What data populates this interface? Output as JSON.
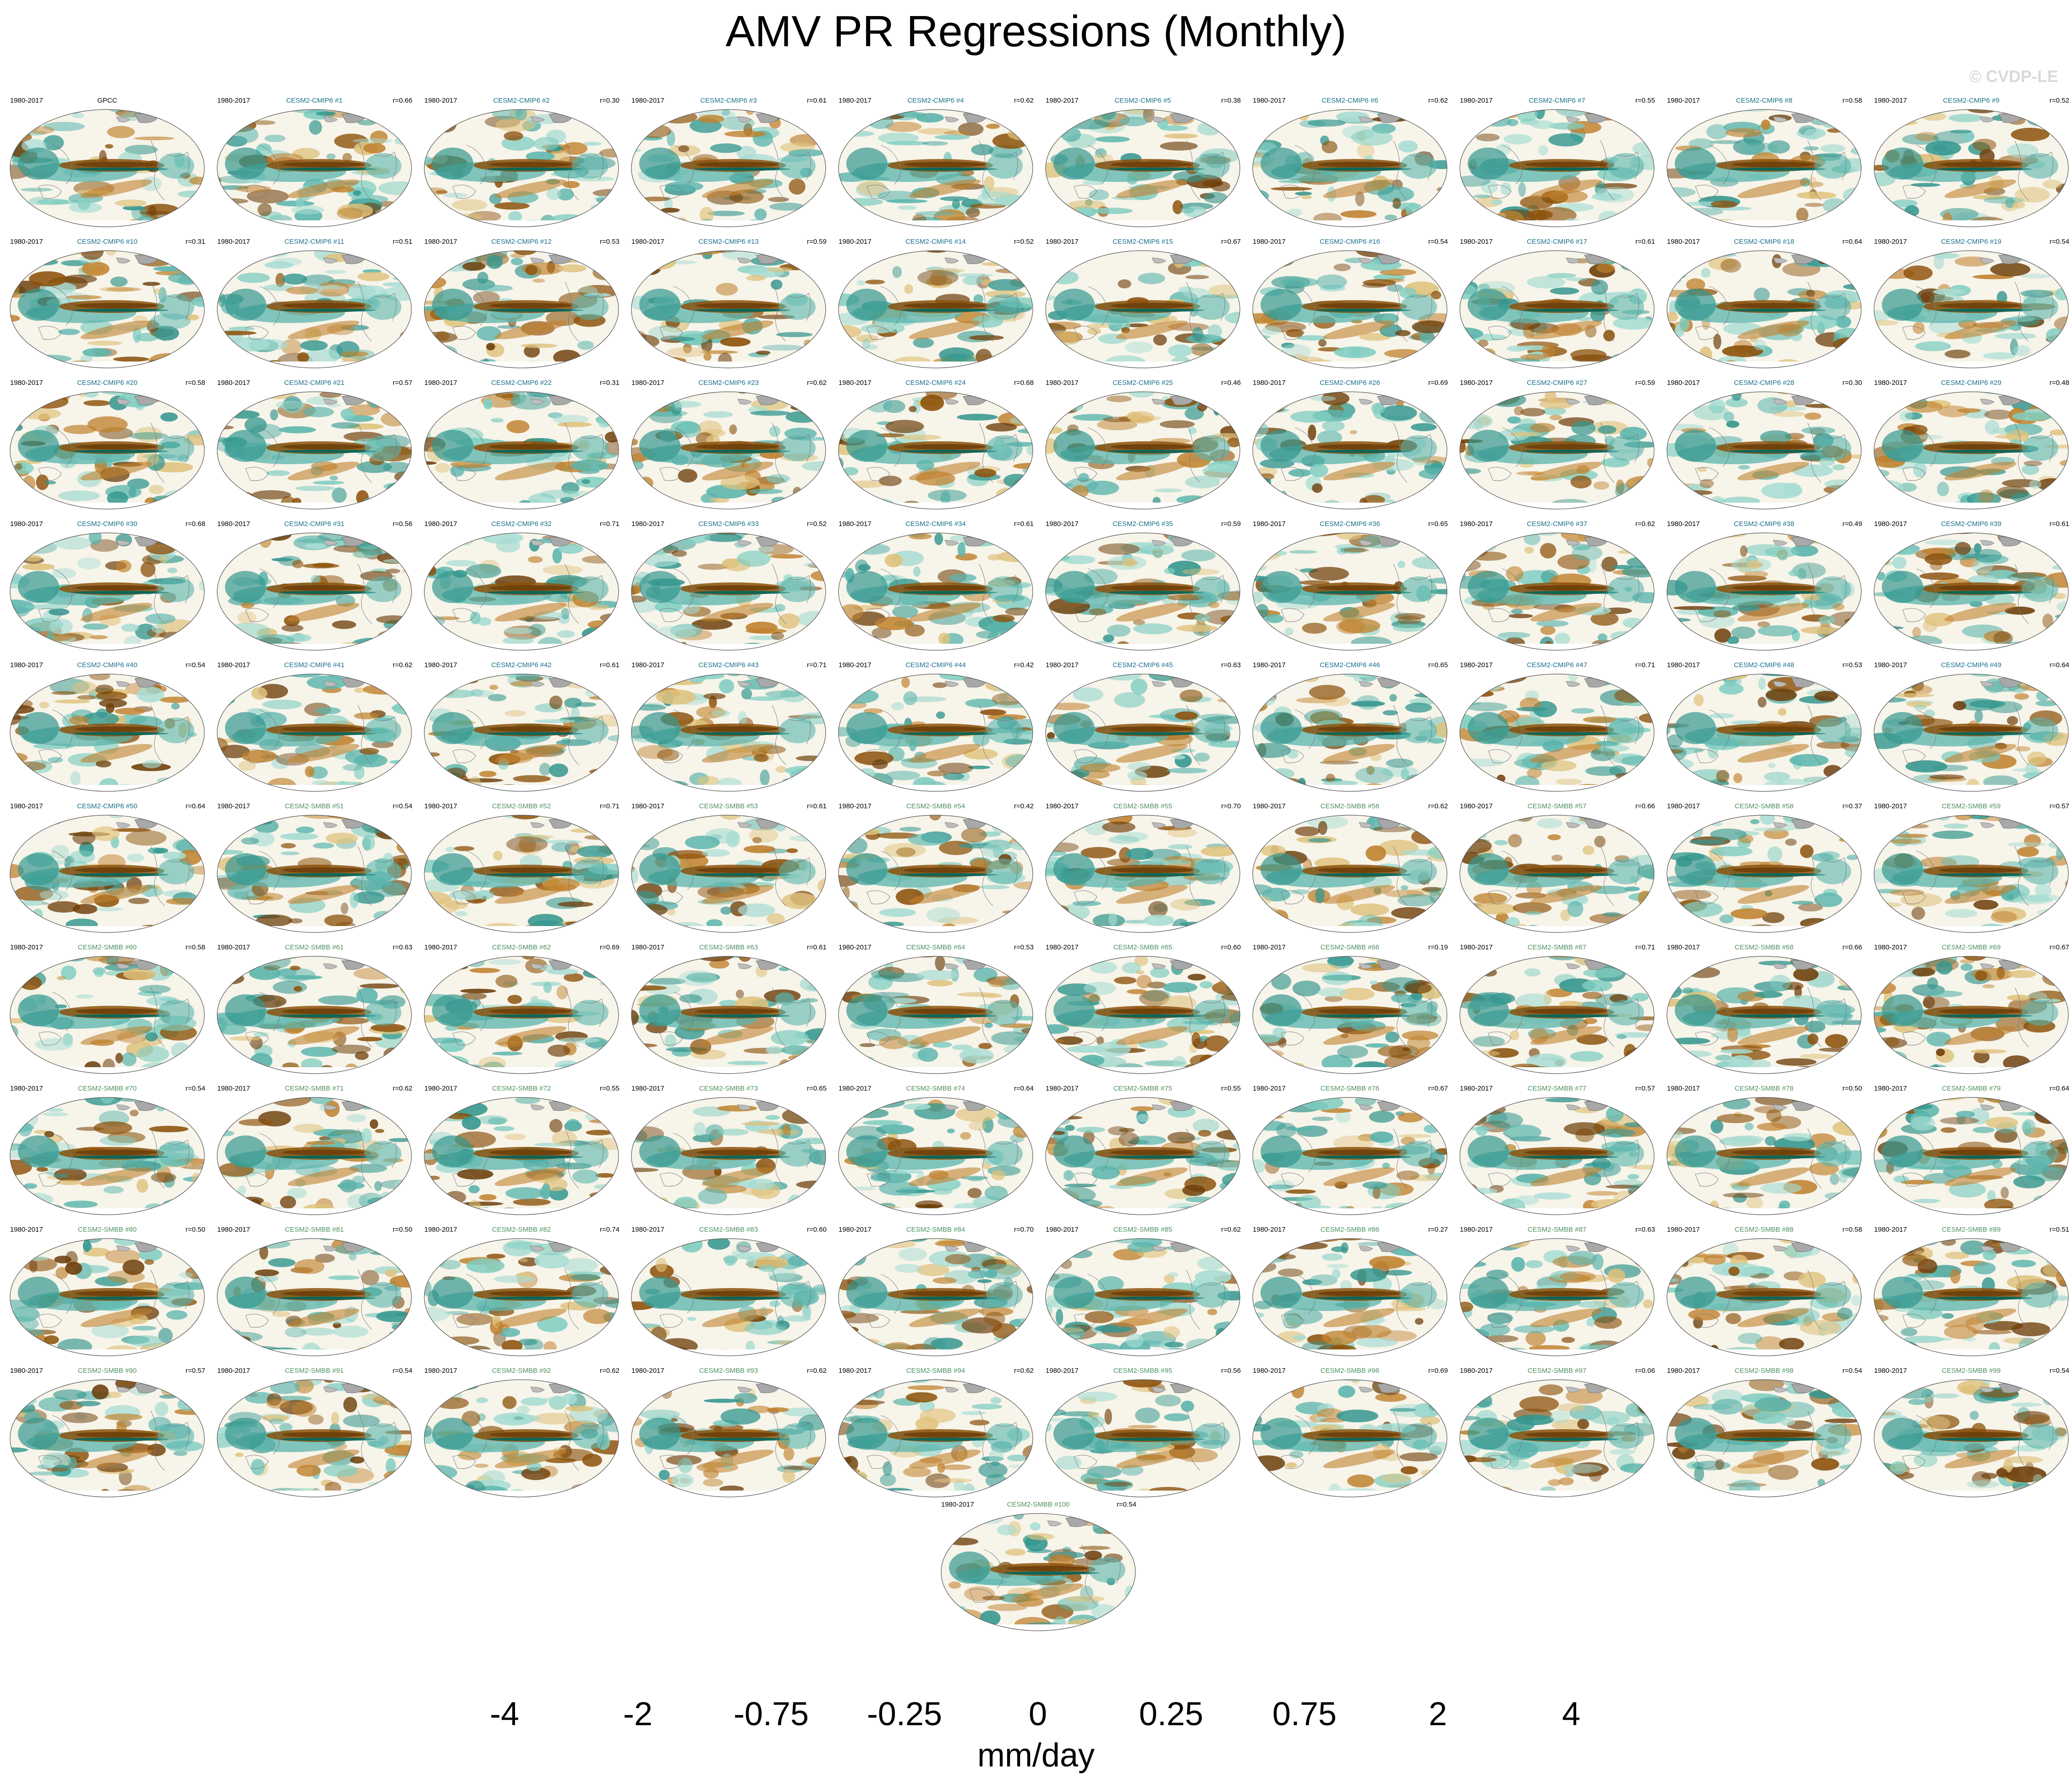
{
  "title": "AMV PR Regressions (Monthly)",
  "watermark": "© CVDP-LE",
  "period": "1980-2017",
  "name_colors": {
    "obs": "#000000",
    "cmip6": "#1a6f8a",
    "smbb": "#4f8f5f"
  },
  "panels": [
    {
      "name": "GPCC",
      "group": "obs",
      "r": ""
    },
    {
      "name": "CESM2-CMIP6 #1",
      "group": "cmip6",
      "r": "r=0.66"
    },
    {
      "name": "CESM2-CMIP6 #2",
      "group": "cmip6",
      "r": "r=0.30"
    },
    {
      "name": "CESM2-CMIP6 #3",
      "group": "cmip6",
      "r": "r=0.61"
    },
    {
      "name": "CESM2-CMIP6 #4",
      "group": "cmip6",
      "r": "r=0.62"
    },
    {
      "name": "CESM2-CMIP6 #5",
      "group": "cmip6",
      "r": "r=0.38"
    },
    {
      "name": "CESM2-CMIP6 #6",
      "group": "cmip6",
      "r": "r=0.62"
    },
    {
      "name": "CESM2-CMIP6 #7",
      "group": "cmip6",
      "r": "r=0.55"
    },
    {
      "name": "CESM2-CMIP6 #8",
      "group": "cmip6",
      "r": "r=0.58"
    },
    {
      "name": "CESM2-CMIP6 #9",
      "group": "cmip6",
      "r": "r=0.52"
    },
    {
      "name": "CESM2-CMIP6 #10",
      "group": "cmip6",
      "r": "r=0.31"
    },
    {
      "name": "CESM2-CMIP6 #11",
      "group": "cmip6",
      "r": "r=0.51"
    },
    {
      "name": "CESM2-CMIP6 #12",
      "group": "cmip6",
      "r": "r=0.53"
    },
    {
      "name": "CESM2-CMIP6 #13",
      "group": "cmip6",
      "r": "r=0.59"
    },
    {
      "name": "CESM2-CMIP6 #14",
      "group": "cmip6",
      "r": "r=0.52"
    },
    {
      "name": "CESM2-CMIP6 #15",
      "group": "cmip6",
      "r": "r=0.67"
    },
    {
      "name": "CESM2-CMIP6 #16",
      "group": "cmip6",
      "r": "r=0.54"
    },
    {
      "name": "CESM2-CMIP6 #17",
      "group": "cmip6",
      "r": "r=0.61"
    },
    {
      "name": "CESM2-CMIP6 #18",
      "group": "cmip6",
      "r": "r=0.64"
    },
    {
      "name": "CESM2-CMIP6 #19",
      "group": "cmip6",
      "r": "r=0.54"
    },
    {
      "name": "CESM2-CMIP6 #20",
      "group": "cmip6",
      "r": "r=0.58"
    },
    {
      "name": "CESM2-CMIP6 #21",
      "group": "cmip6",
      "r": "r=0.57"
    },
    {
      "name": "CESM2-CMIP6 #22",
      "group": "cmip6",
      "r": "r=0.31"
    },
    {
      "name": "CESM2-CMIP6 #23",
      "group": "cmip6",
      "r": "r=0.62"
    },
    {
      "name": "CESM2-CMIP6 #24",
      "group": "cmip6",
      "r": "r=0.68"
    },
    {
      "name": "CESM2-CMIP6 #25",
      "group": "cmip6",
      "r": "r=0.46"
    },
    {
      "name": "CESM2-CMIP6 #26",
      "group": "cmip6",
      "r": "r=0.69"
    },
    {
      "name": "CESM2-CMIP6 #27",
      "group": "cmip6",
      "r": "r=0.59"
    },
    {
      "name": "CESM2-CMIP6 #28",
      "group": "cmip6",
      "r": "r=0.30"
    },
    {
      "name": "CESM2-CMIP6 #29",
      "group": "cmip6",
      "r": "r=0.48"
    },
    {
      "name": "CESM2-CMIP6 #30",
      "group": "cmip6",
      "r": "r=0.68"
    },
    {
      "name": "CESM2-CMIP6 #31",
      "group": "cmip6",
      "r": "r=0.56"
    },
    {
      "name": "CESM2-CMIP6 #32",
      "group": "cmip6",
      "r": "r=0.71"
    },
    {
      "name": "CESM2-CMIP6 #33",
      "group": "cmip6",
      "r": "r=0.52"
    },
    {
      "name": "CESM2-CMIP6 #34",
      "group": "cmip6",
      "r": "r=0.61"
    },
    {
      "name": "CESM2-CMIP6 #35",
      "group": "cmip6",
      "r": "r=0.59"
    },
    {
      "name": "CESM2-CMIP6 #36",
      "group": "cmip6",
      "r": "r=0.65"
    },
    {
      "name": "CESM2-CMIP6 #37",
      "group": "cmip6",
      "r": "r=0.62"
    },
    {
      "name": "CESM2-CMIP6 #38",
      "group": "cmip6",
      "r": "r=0.49"
    },
    {
      "name": "CESM2-CMIP6 #39",
      "group": "cmip6",
      "r": "r=0.61"
    },
    {
      "name": "CESM2-CMIP6 #40",
      "group": "cmip6",
      "r": "r=0.54"
    },
    {
      "name": "CESM2-CMIP6 #41",
      "group": "cmip6",
      "r": "r=0.62"
    },
    {
      "name": "CESM2-CMIP6 #42",
      "group": "cmip6",
      "r": "r=0.61"
    },
    {
      "name": "CESM2-CMIP6 #43",
      "group": "cmip6",
      "r": "r=0.71"
    },
    {
      "name": "CESM2-CMIP6 #44",
      "group": "cmip6",
      "r": "r=0.42"
    },
    {
      "name": "CESM2-CMIP6 #45",
      "group": "cmip6",
      "r": "r=0.63"
    },
    {
      "name": "CESM2-CMIP6 #46",
      "group": "cmip6",
      "r": "r=0.65"
    },
    {
      "name": "CESM2-CMIP6 #47",
      "group": "cmip6",
      "r": "r=0.71"
    },
    {
      "name": "CESM2-CMIP6 #48",
      "group": "cmip6",
      "r": "r=0.53"
    },
    {
      "name": "CESM2-CMIP6 #49",
      "group": "cmip6",
      "r": "r=0.64"
    },
    {
      "name": "CESM2-CMIP6 #50",
      "group": "cmip6",
      "r": "r=0.64"
    },
    {
      "name": "CESM2-SMBB #51",
      "group": "smbb",
      "r": "r=0.54"
    },
    {
      "name": "CESM2-SMBB #52",
      "group": "smbb",
      "r": "r=0.71"
    },
    {
      "name": "CESM2-SMBB #53",
      "group": "smbb",
      "r": "r=0.61"
    },
    {
      "name": "CESM2-SMBB #54",
      "group": "smbb",
      "r": "r=0.42"
    },
    {
      "name": "CESM2-SMBB #55",
      "group": "smbb",
      "r": "r=0.70"
    },
    {
      "name": "CESM2-SMBB #56",
      "group": "smbb",
      "r": "r=0.62"
    },
    {
      "name": "CESM2-SMBB #57",
      "group": "smbb",
      "r": "r=0.66"
    },
    {
      "name": "CESM2-SMBB #58",
      "group": "smbb",
      "r": "r=0.37"
    },
    {
      "name": "CESM2-SMBB #59",
      "group": "smbb",
      "r": "r=0.57"
    },
    {
      "name": "CESM2-SMBB #60",
      "group": "smbb",
      "r": "r=0.58"
    },
    {
      "name": "CESM2-SMBB #61",
      "group": "smbb",
      "r": "r=0.63"
    },
    {
      "name": "CESM2-SMBB #62",
      "group": "smbb",
      "r": "r=0.69"
    },
    {
      "name": "CESM2-SMBB #63",
      "group": "smbb",
      "r": "r=0.61"
    },
    {
      "name": "CESM2-SMBB #64",
      "group": "smbb",
      "r": "r=0.53"
    },
    {
      "name": "CESM2-SMBB #65",
      "group": "smbb",
      "r": "r=0.60"
    },
    {
      "name": "CESM2-SMBB #66",
      "group": "smbb",
      "r": "r=0.19"
    },
    {
      "name": "CESM2-SMBB #67",
      "group": "smbb",
      "r": "r=0.71"
    },
    {
      "name": "CESM2-SMBB #68",
      "group": "smbb",
      "r": "r=0.66"
    },
    {
      "name": "CESM2-SMBB #69",
      "group": "smbb",
      "r": "r=0.67"
    },
    {
      "name": "CESM2-SMBB #70",
      "group": "smbb",
      "r": "r=0.54"
    },
    {
      "name": "CESM2-SMBB #71",
      "group": "smbb",
      "r": "r=0.62"
    },
    {
      "name": "CESM2-SMBB #72",
      "group": "smbb",
      "r": "r=0.55"
    },
    {
      "name": "CESM2-SMBB #73",
      "group": "smbb",
      "r": "r=0.65"
    },
    {
      "name": "CESM2-SMBB #74",
      "group": "smbb",
      "r": "r=0.64"
    },
    {
      "name": "CESM2-SMBB #75",
      "group": "smbb",
      "r": "r=0.55"
    },
    {
      "name": "CESM2-SMBB #76",
      "group": "smbb",
      "r": "r=0.67"
    },
    {
      "name": "CESM2-SMBB #77",
      "group": "smbb",
      "r": "r=0.57"
    },
    {
      "name": "CESM2-SMBB #78",
      "group": "smbb",
      "r": "r=0.50"
    },
    {
      "name": "CESM2-SMBB #79",
      "group": "smbb",
      "r": "r=0.64"
    },
    {
      "name": "CESM2-SMBB #80",
      "group": "smbb",
      "r": "r=0.50"
    },
    {
      "name": "CESM2-SMBB #81",
      "group": "smbb",
      "r": "r=0.50"
    },
    {
      "name": "CESM2-SMBB #82",
      "group": "smbb",
      "r": "r=0.74"
    },
    {
      "name": "CESM2-SMBB #83",
      "group": "smbb",
      "r": "r=0.60"
    },
    {
      "name": "CESM2-SMBB #84",
      "group": "smbb",
      "r": "r=0.70"
    },
    {
      "name": "CESM2-SMBB #85",
      "group": "smbb",
      "r": "r=0.62"
    },
    {
      "name": "CESM2-SMBB #86",
      "group": "smbb",
      "r": "r=0.27"
    },
    {
      "name": "CESM2-SMBB #87",
      "group": "smbb",
      "r": "r=0.63"
    },
    {
      "name": "CESM2-SMBB #88",
      "group": "smbb",
      "r": "r=0.58"
    },
    {
      "name": "CESM2-SMBB #89",
      "group": "smbb",
      "r": "r=0.51"
    },
    {
      "name": "CESM2-SMBB #90",
      "group": "smbb",
      "r": "r=0.57"
    },
    {
      "name": "CESM2-SMBB #91",
      "group": "smbb",
      "r": "r=0.54"
    },
    {
      "name": "CESM2-SMBB #92",
      "group": "smbb",
      "r": "r=0.62"
    },
    {
      "name": "CESM2-SMBB #93",
      "group": "smbb",
      "r": "r=0.62"
    },
    {
      "name": "CESM2-SMBB #94",
      "group": "smbb",
      "r": "r=0.62"
    },
    {
      "name": "CESM2-SMBB #95",
      "group": "smbb",
      "r": "r=0.56"
    },
    {
      "name": "CESM2-SMBB #96",
      "group": "smbb",
      "r": "r=0.69"
    },
    {
      "name": "CESM2-SMBB #97",
      "group": "smbb",
      "r": "r=0.06"
    },
    {
      "name": "CESM2-SMBB #98",
      "group": "smbb",
      "r": "r=0.54"
    },
    {
      "name": "CESM2-SMBB #99",
      "group": "smbb",
      "r": "r=0.54"
    },
    {
      "name": "CESM2-SMBB #100",
      "group": "smbb",
      "r": "r=0.54"
    }
  ],
  "colorbar": {
    "units": "mm/day",
    "colors": [
      "#543005",
      "#6e3f0a",
      "#8c510a",
      "#a5661d",
      "#bf812d",
      "#cfa45a",
      "#dfc27d",
      "#ecd9a8",
      "#f6e8c3",
      "#f4efe4",
      "#e9f3f0",
      "#c7eae5",
      "#a6dcd3",
      "#80cdc1",
      "#5ab4ac",
      "#35978f",
      "#1b7f76",
      "#01665e",
      "#01554b",
      "#003c30"
    ],
    "tick_labels": [
      "-4",
      "-2",
      "-0.75",
      "-0.25",
      "0",
      "0.25",
      "0.75",
      "2",
      "4"
    ]
  }
}
